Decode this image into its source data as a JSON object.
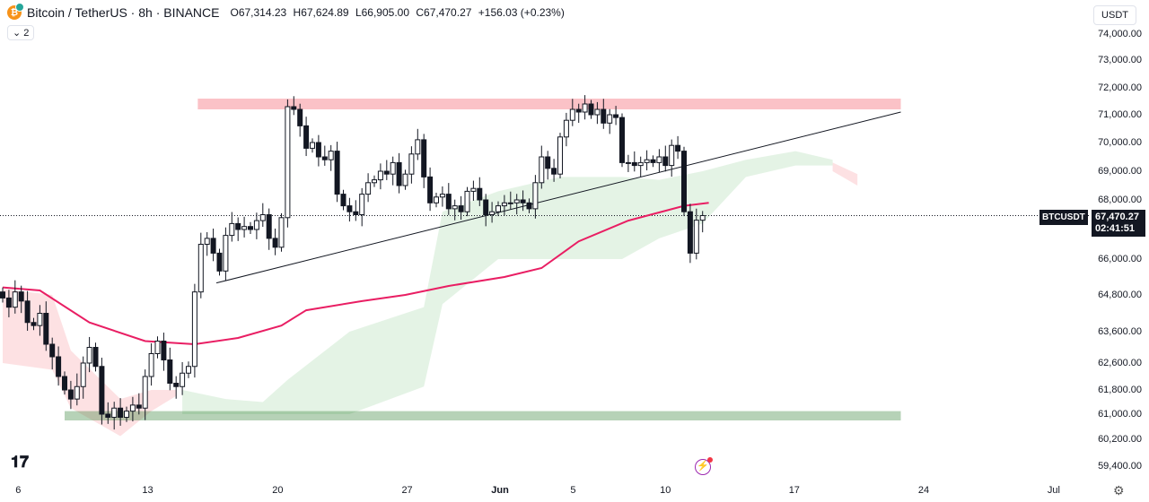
{
  "header": {
    "title": "Bitcoin / TetherUS · 8h · BINANCE",
    "open": "O67,314.23",
    "high": "H67,624.89",
    "low": "L66,905.00",
    "close": "C67,470.27",
    "change": "+156.03 (+0.23%)",
    "indicators_toggle": "2",
    "currency": "USDT",
    "coin_glyph": "₿"
  },
  "price_label": {
    "symbol": "BTCUSDT",
    "price": "67,470.27",
    "countdown": "02:41:51"
  },
  "colors": {
    "up": "#131722",
    "down": "#131722",
    "ma": "#e91e63",
    "cloud_green": "#4caf50",
    "cloud_red": "#f23645",
    "resistance": "#f23645",
    "support": "#2e7d32"
  },
  "icons": {
    "logo": "TV",
    "alert": "⚡",
    "settings": "⚙"
  },
  "chart_data": {
    "type": "candlestick",
    "symbol": "BTCUSDT",
    "interval": "8h",
    "y_ticks": [
      74000,
      73000,
      72000,
      71000,
      70000,
      69000,
      68000,
      66000,
      64800,
      63600,
      62600,
      61800,
      61000,
      60200,
      59400
    ],
    "y_tick_labels": [
      "74,000.00",
      "73,000.00",
      "72,000.00",
      "71,000.00",
      "70,000.00",
      "69,000.00",
      "68,000.00",
      "66,000.00",
      "64,800.00",
      "63,600.00",
      "62,600.00",
      "61,800.00",
      "61,000.00",
      "60,200.00",
      "59,400.00"
    ],
    "x_ticks": [
      {
        "label": "6",
        "index": 2.5
      },
      {
        "label": "13",
        "index": 23.4
      },
      {
        "label": "20",
        "index": 44.4
      },
      {
        "label": "27",
        "index": 65.3
      },
      {
        "label": "Jun",
        "index": 80.3
      },
      {
        "label": "5",
        "index": 92.1
      },
      {
        "label": "10",
        "index": 107
      },
      {
        "label": "17",
        "index": 127.8
      },
      {
        "label": "24",
        "index": 148.7
      },
      {
        "label": "Jul",
        "index": 169.7
      }
    ],
    "closes": [
      64700,
      64400,
      64900,
      64600,
      63900,
      63800,
      64200,
      63200,
      62800,
      62200,
      61800,
      61500,
      61900,
      62600,
      63100,
      62500,
      61000,
      60900,
      61200,
      60900,
      61100,
      61300,
      61200,
      62200,
      62900,
      63300,
      62700,
      62000,
      61900,
      62300,
      62500,
      64900,
      66500,
      66700,
      66200,
      65600,
      66800,
      67200,
      67000,
      67100,
      67000,
      67300,
      67500,
      66700,
      66400,
      67400,
      71300,
      71200,
      70600,
      69800,
      70000,
      69500,
      69400,
      69700,
      68200,
      67800,
      67600,
      67500,
      68200,
      68600,
      68700,
      69000,
      68900,
      69300,
      68500,
      68900,
      69600,
      70100,
      68800,
      67900,
      68100,
      68200,
      67700,
      67800,
      67600,
      68300,
      68400,
      68000,
      67500,
      67600,
      67800,
      67900,
      67900,
      68000,
      67900,
      67700,
      68600,
      69500,
      69100,
      68900,
      70200,
      70800,
      71200,
      71100,
      71400,
      71000,
      71200,
      70700,
      71000,
      70900,
      69300,
      69300,
      69200,
      69300,
      69400,
      69300,
      69500,
      69200,
      69900,
      69700,
      67600,
      66200,
      67314.23,
      67470.27
    ],
    "last": {
      "open": 67314.23,
      "high": 67624.89,
      "low": 66905.0,
      "close": 67470.27
    },
    "ma": [
      [
        0,
        65050
      ],
      [
        6,
        64950
      ],
      [
        14,
        63900
      ],
      [
        23,
        63300
      ],
      [
        31,
        63200
      ],
      [
        38,
        63400
      ],
      [
        45,
        63800
      ],
      [
        49,
        64300
      ],
      [
        58,
        64600
      ],
      [
        65,
        64800
      ],
      [
        72,
        65100
      ],
      [
        81,
        65400
      ],
      [
        87,
        65700
      ],
      [
        93,
        66600
      ],
      [
        101,
        67300
      ],
      [
        110,
        67800
      ],
      [
        114,
        67900
      ]
    ],
    "cloud_green": [
      [
        29,
        61800,
        61000
      ],
      [
        36,
        61500,
        61000
      ],
      [
        42,
        61400,
        61000
      ],
      [
        46,
        62100,
        61000
      ],
      [
        56,
        63600,
        61000
      ],
      [
        68,
        64400,
        61900
      ],
      [
        71,
        67600,
        64500
      ],
      [
        80,
        68300,
        66000
      ],
      [
        90,
        68800,
        66000
      ],
      [
        100,
        68800,
        66000
      ],
      [
        106,
        68700,
        66700
      ],
      [
        113,
        69000,
        67200
      ],
      [
        120,
        69400,
        68800
      ],
      [
        128,
        69700,
        69200
      ],
      [
        134,
        69400,
        69200
      ]
    ],
    "cloud_red": [
      [
        0,
        65000,
        62600
      ],
      [
        8,
        64800,
        62400
      ],
      [
        11,
        63000,
        61200
      ],
      [
        19,
        61500,
        60300
      ],
      [
        24,
        61800,
        61100
      ],
      [
        28,
        61800,
        61600
      ],
      [
        134,
        69300,
        69000
      ],
      [
        138,
        68900,
        68500
      ]
    ],
    "trendline": [
      [
        34.5,
        65200
      ],
      [
        145,
        71100
      ]
    ],
    "zones": [
      {
        "name": "resistance",
        "from": 31.5,
        "to": 145,
        "top": 71600,
        "bottom": 71200
      },
      {
        "name": "support",
        "from": 10,
        "to": 145,
        "top": 61100,
        "bottom": 60800
      }
    ]
  }
}
